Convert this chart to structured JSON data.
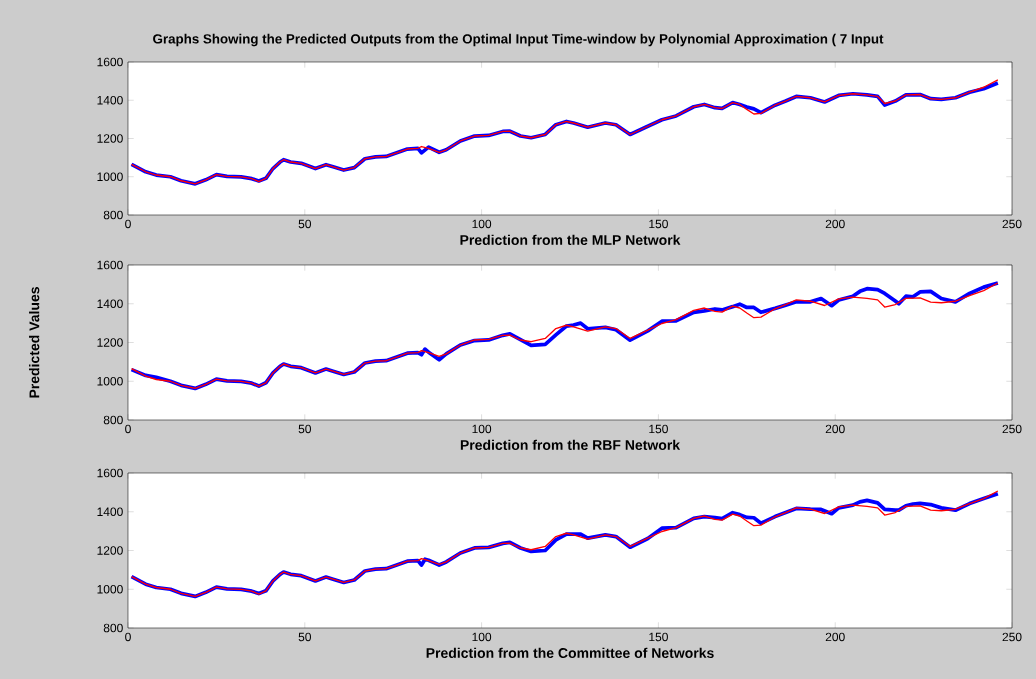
{
  "chart_data": [
    {
      "type": "line",
      "title": "Graphs Showing the Predicted Outputs from the Optimal Input Time-window by Polynomial Approximation ( 7 Input",
      "xlabel": "Prediction from the MLP Network",
      "xlim": [
        0,
        250
      ],
      "xticks": [
        0,
        50,
        100,
        150,
        200,
        250
      ],
      "ylim": [
        800,
        1600
      ],
      "yticks": [
        800,
        1000,
        1200,
        1400,
        1600
      ],
      "series": [
        {
          "color": "#0000ff",
          "x": [
            1,
            5,
            8,
            12,
            15,
            19,
            22,
            25,
            28,
            32,
            35,
            37,
            39,
            41,
            43,
            44,
            46,
            49,
            53,
            56,
            58,
            61,
            64,
            67,
            70,
            73,
            76,
            79,
            82,
            83,
            85,
            88,
            90,
            94,
            98,
            102,
            106,
            108,
            111,
            114,
            118,
            121,
            124,
            126,
            130,
            135,
            138,
            142,
            147,
            151,
            155,
            160,
            163,
            166,
            168,
            171,
            173,
            175,
            177,
            179,
            183,
            186,
            189,
            193,
            197,
            201,
            205,
            209,
            212,
            214,
            217,
            220,
            224,
            227,
            230,
            234,
            238,
            242,
            246
          ],
          "values": [
            1065,
            1026,
            1009,
            1000,
            979,
            963,
            984,
            1011,
            1002,
            999,
            990,
            978,
            992,
            1043,
            1077,
            1089,
            1077,
            1070,
            1043,
            1063,
            1052,
            1035,
            1048,
            1094,
            1104,
            1106,
            1125,
            1145,
            1148,
            1125,
            1155,
            1128,
            1141,
            1187,
            1213,
            1216,
            1237,
            1238,
            1213,
            1204,
            1221,
            1272,
            1289,
            1281,
            1259,
            1281,
            1272,
            1221,
            1264,
            1298,
            1318,
            1366,
            1378,
            1361,
            1357,
            1388,
            1378,
            1365,
            1355,
            1335,
            1374,
            1396,
            1420,
            1413,
            1391,
            1425,
            1434,
            1428,
            1420,
            1375,
            1396,
            1428,
            1430,
            1408,
            1405,
            1413,
            1442,
            1460,
            1490
          ]
        },
        {
          "color": "#ff0000",
          "x": [
            1,
            5,
            8,
            12,
            15,
            19,
            22,
            25,
            28,
            32,
            35,
            37,
            39,
            41,
            43,
            44,
            46,
            49,
            53,
            56,
            58,
            61,
            64,
            67,
            70,
            73,
            76,
            79,
            82,
            83,
            85,
            88,
            90,
            94,
            98,
            102,
            106,
            108,
            111,
            114,
            118,
            121,
            124,
            126,
            130,
            135,
            138,
            142,
            147,
            151,
            155,
            160,
            163,
            166,
            168,
            171,
            173,
            175,
            177,
            179,
            183,
            186,
            189,
            193,
            197,
            201,
            205,
            209,
            212,
            214,
            217,
            220,
            224,
            227,
            230,
            234,
            238,
            242,
            246
          ],
          "values": [
            1065,
            1026,
            1009,
            1000,
            979,
            963,
            984,
            1011,
            1002,
            999,
            990,
            975,
            992,
            1043,
            1077,
            1089,
            1077,
            1070,
            1043,
            1063,
            1052,
            1035,
            1048,
            1094,
            1104,
            1106,
            1125,
            1145,
            1148,
            1158,
            1148,
            1128,
            1141,
            1187,
            1213,
            1216,
            1237,
            1238,
            1213,
            1204,
            1221,
            1272,
            1289,
            1281,
            1259,
            1281,
            1272,
            1221,
            1264,
            1298,
            1318,
            1366,
            1378,
            1361,
            1357,
            1388,
            1378,
            1352,
            1328,
            1331,
            1374,
            1396,
            1420,
            1413,
            1391,
            1425,
            1434,
            1428,
            1420,
            1383,
            1396,
            1428,
            1430,
            1408,
            1405,
            1413,
            1442,
            1468,
            1507
          ]
        }
      ]
    },
    {
      "type": "line",
      "xlabel": "Prediction from the RBF Network",
      "ylabel": "Predicted Values",
      "xlim": [
        0,
        250
      ],
      "xticks": [
        0,
        50,
        100,
        150,
        200,
        250
      ],
      "ylim": [
        800,
        1600
      ],
      "yticks": [
        800,
        1000,
        1200,
        1400,
        1600
      ],
      "series": [
        {
          "color": "#0000ff",
          "x": [
            1,
            5,
            8,
            12,
            15,
            19,
            22,
            25,
            28,
            32,
            35,
            37,
            39,
            41,
            43,
            44,
            46,
            49,
            53,
            56,
            58,
            61,
            64,
            67,
            70,
            73,
            76,
            79,
            82,
            83,
            84,
            85,
            88,
            90,
            94,
            98,
            102,
            106,
            108,
            111,
            114,
            118,
            121,
            124,
            126,
            128,
            130,
            135,
            138,
            142,
            147,
            151,
            155,
            160,
            163,
            166,
            168,
            171,
            173,
            175,
            177,
            179,
            183,
            186,
            189,
            193,
            196,
            199,
            201,
            205,
            207,
            209,
            212,
            214,
            217,
            218,
            220,
            222,
            224,
            227,
            230,
            234,
            238,
            242,
            246
          ],
          "values": [
            1060,
            1030,
            1020,
            1000,
            979,
            963,
            984,
            1011,
            1002,
            999,
            990,
            975,
            992,
            1043,
            1077,
            1089,
            1077,
            1070,
            1043,
            1063,
            1052,
            1035,
            1048,
            1094,
            1104,
            1106,
            1125,
            1145,
            1148,
            1137,
            1166,
            1150,
            1111,
            1141,
            1187,
            1210,
            1213,
            1237,
            1245,
            1215,
            1185,
            1190,
            1239,
            1285,
            1290,
            1300,
            1271,
            1278,
            1266,
            1212,
            1260,
            1310,
            1312,
            1356,
            1363,
            1373,
            1368,
            1385,
            1398,
            1381,
            1381,
            1356,
            1376,
            1393,
            1410,
            1410,
            1427,
            1390,
            1419,
            1439,
            1464,
            1478,
            1473,
            1453,
            1414,
            1400,
            1439,
            1436,
            1461,
            1464,
            1427,
            1410,
            1453,
            1486,
            1507
          ]
        },
        {
          "color": "#ff0000",
          "x": [
            1,
            5,
            8,
            12,
            15,
            19,
            22,
            25,
            28,
            32,
            35,
            37,
            39,
            41,
            43,
            44,
            46,
            49,
            53,
            56,
            58,
            61,
            64,
            67,
            70,
            73,
            76,
            79,
            82,
            83,
            85,
            88,
            90,
            94,
            98,
            102,
            106,
            108,
            111,
            114,
            118,
            121,
            124,
            126,
            130,
            135,
            138,
            142,
            147,
            151,
            155,
            160,
            163,
            166,
            168,
            171,
            173,
            175,
            177,
            179,
            183,
            186,
            189,
            193,
            197,
            201,
            205,
            209,
            212,
            214,
            217,
            220,
            224,
            227,
            230,
            234,
            238,
            242,
            246
          ],
          "values": [
            1065,
            1026,
            1009,
            1000,
            979,
            963,
            984,
            1011,
            1002,
            999,
            990,
            975,
            992,
            1043,
            1077,
            1089,
            1077,
            1070,
            1043,
            1063,
            1052,
            1035,
            1048,
            1094,
            1104,
            1106,
            1125,
            1145,
            1148,
            1158,
            1148,
            1128,
            1141,
            1187,
            1213,
            1216,
            1237,
            1238,
            1213,
            1204,
            1221,
            1272,
            1289,
            1281,
            1259,
            1281,
            1272,
            1221,
            1264,
            1298,
            1318,
            1366,
            1378,
            1361,
            1357,
            1388,
            1378,
            1352,
            1328,
            1331,
            1374,
            1396,
            1420,
            1413,
            1391,
            1425,
            1434,
            1428,
            1420,
            1383,
            1396,
            1428,
            1430,
            1408,
            1405,
            1413,
            1442,
            1468,
            1507
          ]
        }
      ]
    },
    {
      "type": "line",
      "xlabel": "Prediction from the Committee of Networks",
      "xlim": [
        0,
        250
      ],
      "xticks": [
        0,
        50,
        100,
        150,
        200,
        250
      ],
      "ylim": [
        800,
        1600
      ],
      "yticks": [
        800,
        1000,
        1200,
        1400,
        1600
      ],
      "series": [
        {
          "color": "#0000ff",
          "x": [
            1,
            5,
            8,
            12,
            15,
            19,
            22,
            25,
            28,
            32,
            35,
            37,
            39,
            41,
            43,
            44,
            46,
            49,
            53,
            56,
            58,
            61,
            64,
            67,
            70,
            73,
            76,
            79,
            82,
            83,
            84,
            85,
            88,
            90,
            94,
            98,
            102,
            106,
            108,
            111,
            114,
            118,
            121,
            124,
            126,
            128,
            130,
            135,
            138,
            142,
            147,
            151,
            155,
            160,
            163,
            166,
            168,
            171,
            173,
            175,
            177,
            179,
            183,
            186,
            189,
            193,
            196,
            199,
            201,
            205,
            207,
            209,
            212,
            214,
            217,
            218,
            220,
            222,
            224,
            227,
            230,
            234,
            238,
            242,
            246
          ],
          "values": [
            1065,
            1026,
            1009,
            1000,
            979,
            963,
            984,
            1011,
            1002,
            999,
            990,
            978,
            992,
            1043,
            1077,
            1089,
            1077,
            1070,
            1043,
            1063,
            1052,
            1035,
            1048,
            1094,
            1104,
            1106,
            1125,
            1145,
            1148,
            1125,
            1155,
            1150,
            1125,
            1141,
            1187,
            1213,
            1216,
            1237,
            1242,
            1213,
            1195,
            1200,
            1255,
            1285,
            1285,
            1285,
            1264,
            1281,
            1272,
            1217,
            1262,
            1315,
            1318,
            1366,
            1375,
            1370,
            1365,
            1395,
            1385,
            1371,
            1369,
            1341,
            1375,
            1396,
            1417,
            1413,
            1412,
            1390,
            1420,
            1434,
            1451,
            1459,
            1446,
            1412,
            1408,
            1408,
            1431,
            1440,
            1443,
            1437,
            1420,
            1408,
            1442,
            1468,
            1493
          ]
        },
        {
          "color": "#ff0000",
          "x": [
            1,
            5,
            8,
            12,
            15,
            19,
            22,
            25,
            28,
            32,
            35,
            37,
            39,
            41,
            43,
            44,
            46,
            49,
            53,
            56,
            58,
            61,
            64,
            67,
            70,
            73,
            76,
            79,
            82,
            83,
            85,
            88,
            90,
            94,
            98,
            102,
            106,
            108,
            111,
            114,
            118,
            121,
            124,
            126,
            130,
            135,
            138,
            142,
            147,
            151,
            155,
            160,
            163,
            166,
            168,
            171,
            173,
            175,
            177,
            179,
            183,
            186,
            189,
            193,
            197,
            201,
            205,
            209,
            212,
            214,
            217,
            220,
            224,
            227,
            230,
            234,
            238,
            242,
            246
          ],
          "values": [
            1065,
            1026,
            1009,
            1000,
            979,
            963,
            984,
            1011,
            1002,
            999,
            990,
            975,
            992,
            1043,
            1077,
            1089,
            1077,
            1070,
            1043,
            1063,
            1052,
            1035,
            1048,
            1094,
            1104,
            1106,
            1125,
            1145,
            1148,
            1158,
            1148,
            1128,
            1141,
            1187,
            1213,
            1216,
            1237,
            1238,
            1213,
            1204,
            1221,
            1272,
            1289,
            1281,
            1259,
            1281,
            1272,
            1221,
            1264,
            1298,
            1318,
            1366,
            1378,
            1361,
            1357,
            1388,
            1378,
            1352,
            1328,
            1331,
            1374,
            1396,
            1420,
            1413,
            1391,
            1425,
            1434,
            1428,
            1420,
            1383,
            1396,
            1428,
            1430,
            1408,
            1405,
            1413,
            1442,
            1468,
            1507
          ]
        }
      ]
    }
  ]
}
